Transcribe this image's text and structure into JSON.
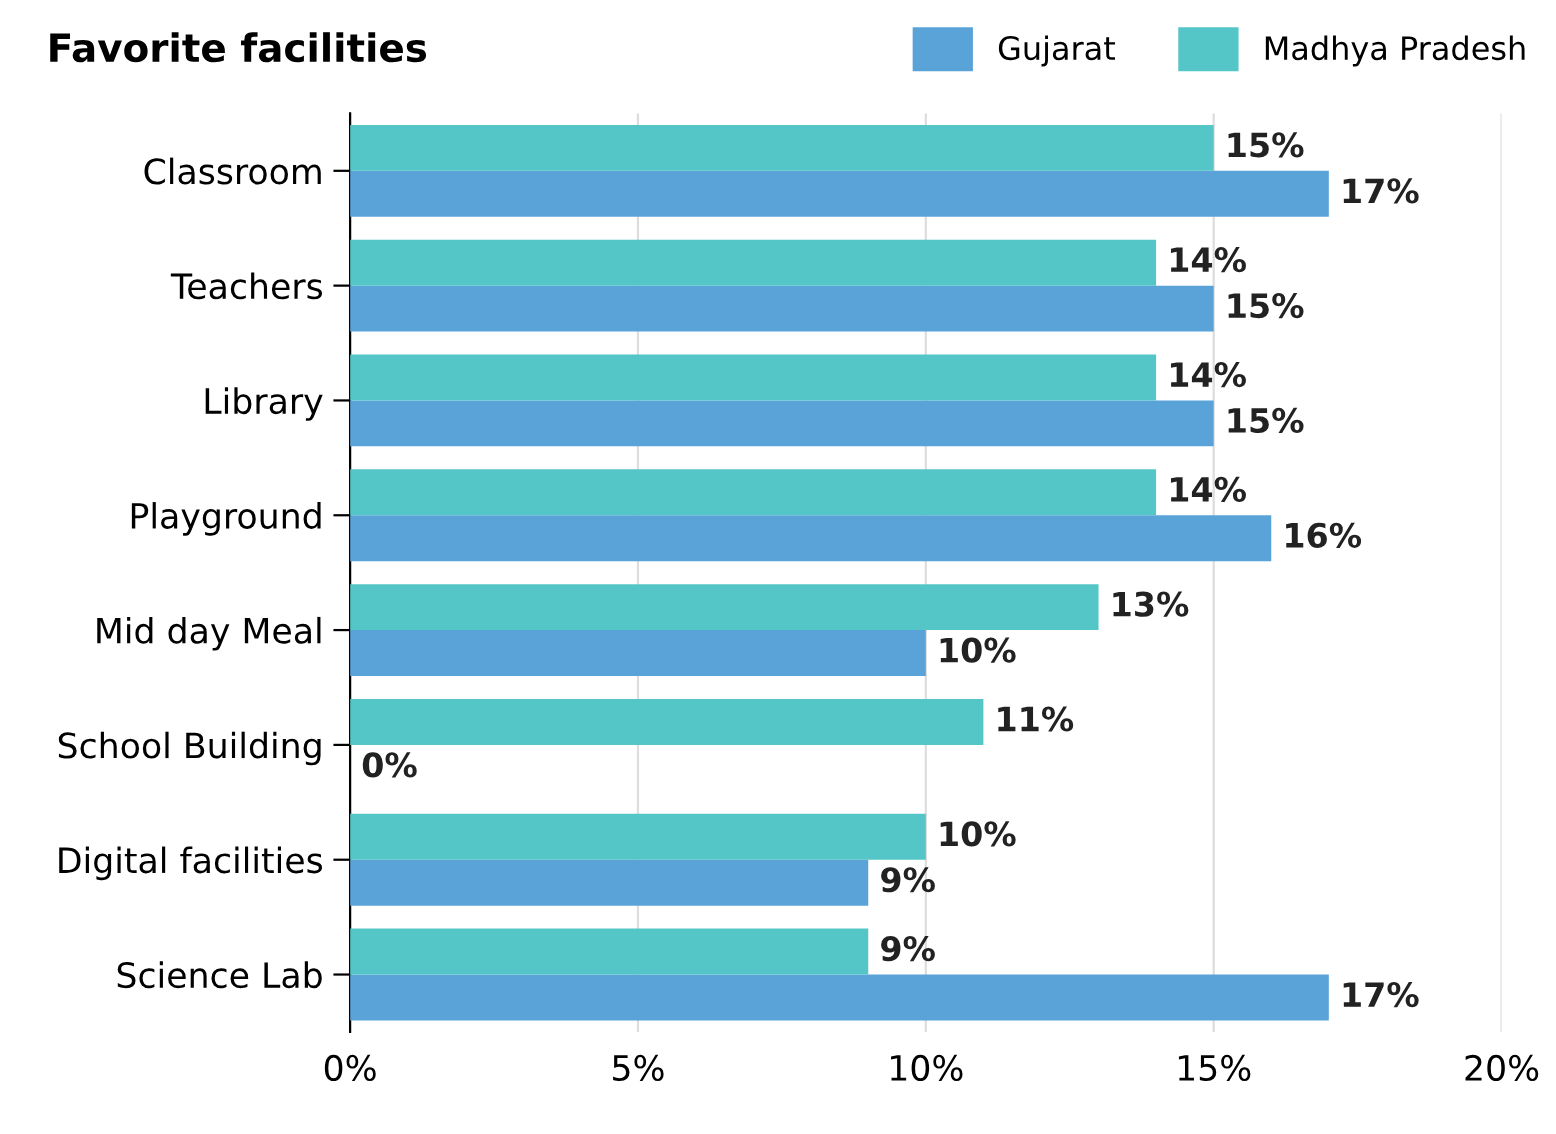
{
  "chart_data": {
    "type": "bar",
    "orientation": "horizontal",
    "title": "Favorite facilities",
    "categories": [
      "Classroom",
      "Teachers",
      "Library",
      "Playground",
      "Mid day Meal",
      "School Building",
      "Digital facilities",
      "Science Lab"
    ],
    "series": [
      {
        "name": "Gujarat",
        "color": "#5aa3d9",
        "values": [
          17,
          15,
          15,
          16,
          10,
          0,
          9,
          17
        ],
        "value_labels": [
          "17%",
          "15%",
          "15%",
          "16%",
          "10%",
          "0%",
          "9%",
          "17%"
        ]
      },
      {
        "name": "Madhya Pradesh",
        "color": "#55c6c8",
        "values": [
          15,
          14,
          14,
          14,
          13,
          11,
          10,
          9
        ],
        "value_labels": [
          "15%",
          "14%",
          "14%",
          "14%",
          "13%",
          "11%",
          "10%",
          "9%"
        ]
      }
    ],
    "xlim": [
      0,
      20
    ],
    "xticks": [
      {
        "value": 0,
        "label": "0%"
      },
      {
        "value": 5,
        "label": "5%"
      },
      {
        "value": 10,
        "label": "10%"
      },
      {
        "value": 15,
        "label": "15%"
      },
      {
        "value": 20,
        "label": "20%"
      }
    ],
    "grid": "x",
    "legend": "top right"
  }
}
